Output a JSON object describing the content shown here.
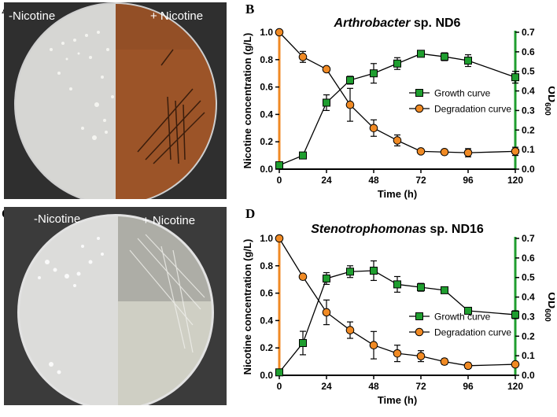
{
  "panels": {
    "A": {
      "letter": "A",
      "label_minus": "-Nicotine",
      "label_plus": "+ Nicotine"
    },
    "B": {
      "letter": "B"
    },
    "C": {
      "letter": "C",
      "label_minus": "-Nicotine",
      "label_plus": "+ Nicotine"
    },
    "D": {
      "letter": "D"
    }
  },
  "colors": {
    "growth": "#1f9e2f",
    "degradation": "#f08a24",
    "left_axis": "#f08a24",
    "right_axis": "#1f9e2f",
    "photo_background": "#3a3a3a",
    "agar_plain": "#d9d9d6",
    "agar_brown": "#a0572b"
  },
  "chart_data": [
    {
      "type": "line",
      "title_italic": "Arthrobacter",
      "title_rest": " sp. ND6",
      "xlabel": "Time (h)",
      "ylabel": "Nicotine concentration (g/L)",
      "y2label_main": "OD",
      "y2label_sub": "600",
      "xlim": [
        0,
        120
      ],
      "xticks": [
        0,
        24,
        48,
        72,
        96,
        120
      ],
      "ylim": [
        0,
        1.0
      ],
      "yticks": [
        0.0,
        0.2,
        0.4,
        0.6,
        0.8,
        1.0
      ],
      "ytick_labels": [
        "0.0",
        "0.2",
        "0.4",
        "0.6",
        "0.8",
        "1.0"
      ],
      "y2lim": [
        0,
        0.7
      ],
      "y2ticks": [
        0.0,
        0.1,
        0.2,
        0.3,
        0.4,
        0.5,
        0.6,
        0.7
      ],
      "y2tick_labels": [
        "0.0",
        "0.1",
        "0.2",
        "0.3",
        "0.4",
        "0.5",
        "0.6",
        "0.7"
      ],
      "legend_position": "middle-right",
      "series": [
        {
          "name": "Growth curve",
          "axis": "right",
          "marker": "square",
          "x": [
            0,
            12,
            24,
            36,
            48,
            60,
            72,
            84,
            96,
            120
          ],
          "y": [
            0.02,
            0.07,
            0.34,
            0.455,
            0.49,
            0.54,
            0.59,
            0.575,
            0.555,
            0.47
          ],
          "err": [
            0.01,
            0.01,
            0.04,
            0.02,
            0.05,
            0.03,
            0.01,
            0.02,
            0.03,
            0.03
          ]
        },
        {
          "name": "Degradation curve",
          "axis": "left",
          "marker": "circle",
          "x": [
            0,
            12,
            24,
            36,
            48,
            60,
            72,
            84,
            96,
            120
          ],
          "y": [
            1.0,
            0.82,
            0.73,
            0.47,
            0.3,
            0.21,
            0.13,
            0.125,
            0.12,
            0.13
          ],
          "err": [
            0.01,
            0.04,
            0.01,
            0.12,
            0.06,
            0.04,
            0.01,
            0.01,
            0.03,
            0.03
          ]
        }
      ]
    },
    {
      "type": "line",
      "title_italic": "Stenotrophomonas",
      "title_rest": " sp. ND16",
      "xlabel": "Time (h)",
      "ylabel": "Nicotine concentration (g/L)",
      "y2label_main": "OD",
      "y2label_sub": "600",
      "xlim": [
        0,
        120
      ],
      "xticks": [
        0,
        24,
        48,
        72,
        96,
        120
      ],
      "ylim": [
        0,
        1.0
      ],
      "yticks": [
        0.0,
        0.2,
        0.4,
        0.6,
        0.8,
        1.0
      ],
      "ytick_labels": [
        "0.0",
        "0.2",
        "0.4",
        "0.6",
        "0.8",
        "1.0"
      ],
      "y2lim": [
        0,
        0.7
      ],
      "y2ticks": [
        0.0,
        0.1,
        0.2,
        0.3,
        0.4,
        0.5,
        0.6,
        0.7
      ],
      "y2tick_labels": [
        "0.0",
        "0.1",
        "0.2",
        "0.3",
        "0.4",
        "0.5",
        "0.6",
        "0.7"
      ],
      "legend_position": "lower-right",
      "series": [
        {
          "name": "Growth curve",
          "axis": "right",
          "marker": "square",
          "x": [
            0,
            12,
            24,
            36,
            48,
            60,
            72,
            84,
            96,
            120
          ],
          "y": [
            0.015,
            0.165,
            0.495,
            0.53,
            0.535,
            0.465,
            0.45,
            0.435,
            0.33,
            0.31
          ],
          "err": [
            0.01,
            0.06,
            0.03,
            0.03,
            0.05,
            0.04,
            0.02,
            0.01,
            0.01,
            0.02
          ]
        },
        {
          "name": "Degradation curve",
          "axis": "left",
          "marker": "circle",
          "x": [
            0,
            12,
            24,
            36,
            48,
            60,
            72,
            84,
            96,
            120
          ],
          "y": [
            1.0,
            0.72,
            0.46,
            0.33,
            0.22,
            0.16,
            0.14,
            0.1,
            0.07,
            0.08
          ],
          "err": [
            0.01,
            0.01,
            0.09,
            0.06,
            0.1,
            0.06,
            0.04,
            0.02,
            0.02,
            0.01
          ]
        }
      ]
    }
  ]
}
